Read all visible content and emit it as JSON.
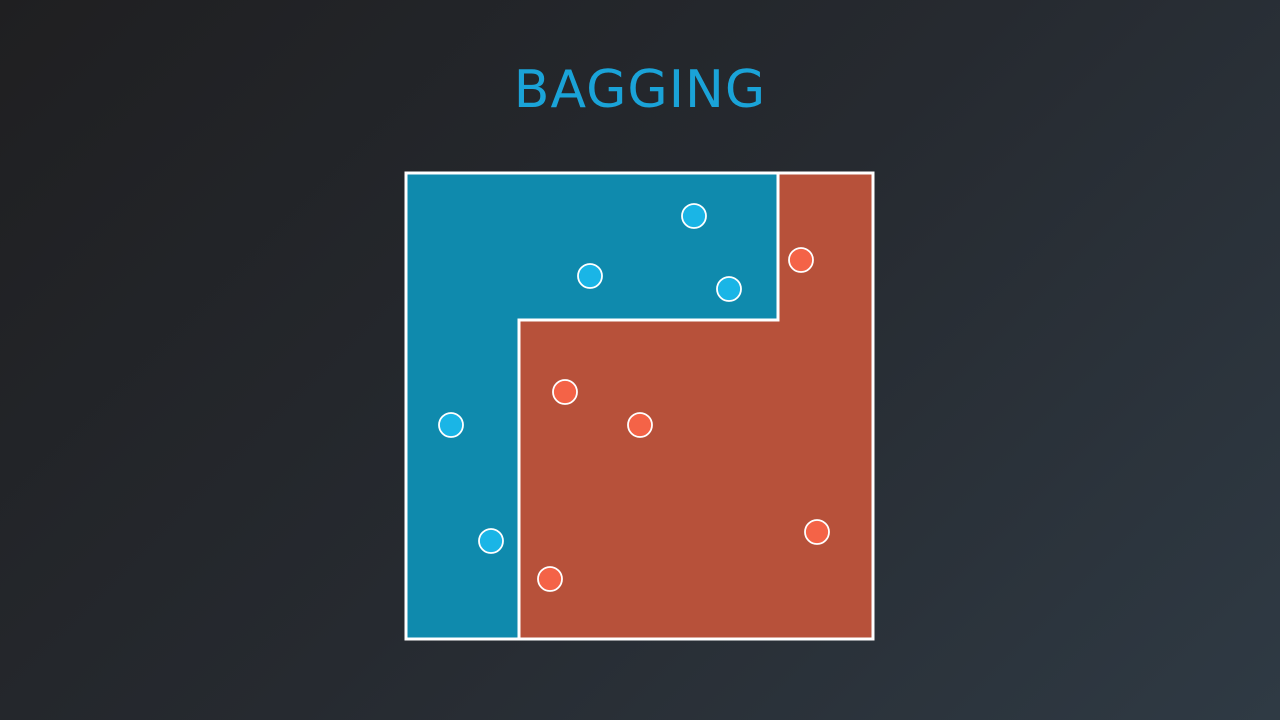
{
  "slide": {
    "title": "BAGGING"
  },
  "colors": {
    "title": "#1aa3d8",
    "blue_region": "#0f8aad",
    "red_region": "#b7513a",
    "blue_point": "#1ab5e6",
    "red_point": "#f46347",
    "border": "#ffffff"
  },
  "points": {
    "blue": [
      {
        "name": "blue-point-1"
      },
      {
        "name": "blue-point-2"
      },
      {
        "name": "blue-point-3"
      },
      {
        "name": "blue-point-4"
      },
      {
        "name": "blue-point-5"
      }
    ],
    "red": [
      {
        "name": "red-point-1"
      },
      {
        "name": "red-point-2"
      },
      {
        "name": "red-point-3"
      },
      {
        "name": "red-point-4"
      },
      {
        "name": "red-point-5"
      }
    ]
  }
}
